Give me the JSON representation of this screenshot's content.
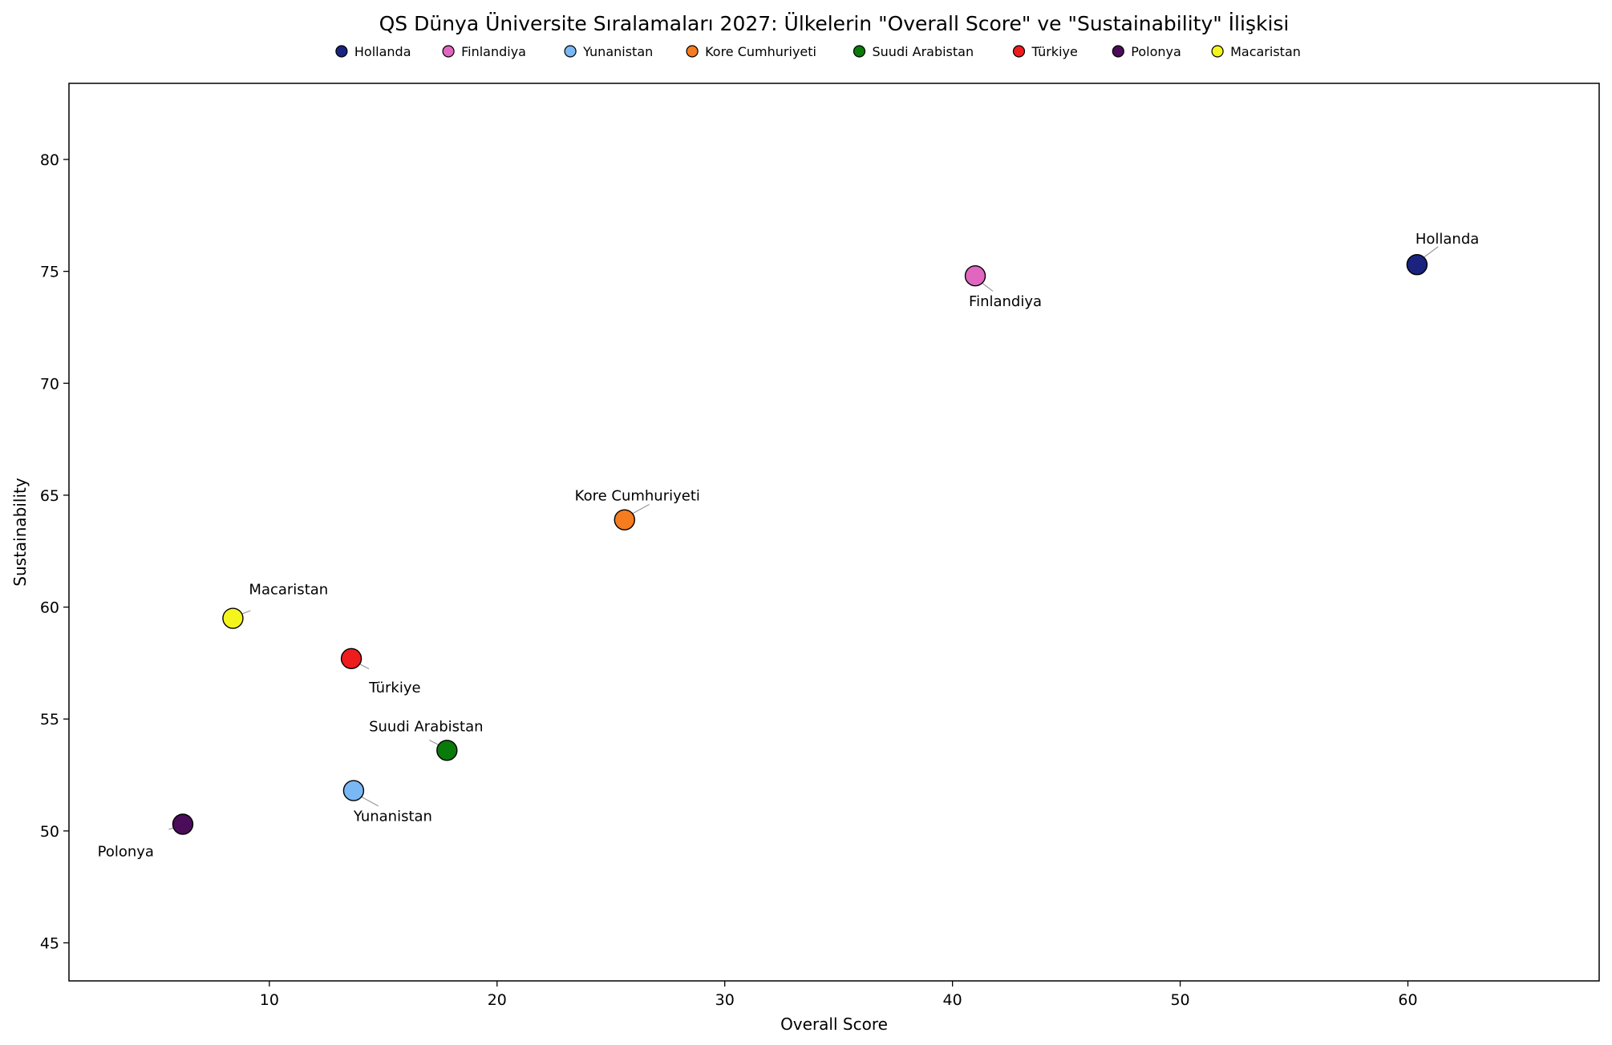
{
  "chart_data": {
    "type": "scatter",
    "title": "QS Dünya Üniversite Sıralamaları 2027: Ülkelerin \"Overall Score\" ve \"Sustainability\" İlişkisi",
    "xlabel": "Overall Score",
    "ylabel": "Sustainability",
    "xlim": [
      1.2,
      68.4
    ],
    "ylim": [
      43.3,
      83.4
    ],
    "xticks": [
      "10",
      "20",
      "30",
      "40",
      "50",
      "60"
    ],
    "yticks": [
      "45",
      "50",
      "55",
      "60",
      "65",
      "70",
      "75",
      "80"
    ],
    "grid": false,
    "legend_position": "top-center",
    "points": [
      {
        "name": "Hollanda",
        "x": 60.4,
        "y": 75.3,
        "color": "#1a237e"
      },
      {
        "name": "Finlandiya",
        "x": 41.0,
        "y": 74.8,
        "color": "#e066c0"
      },
      {
        "name": "Yunanistan",
        "x": 13.7,
        "y": 51.8,
        "color": "#7ab8f5"
      },
      {
        "name": "Kore Cumhuriyeti",
        "x": 25.6,
        "y": 63.9,
        "color": "#f57c1f"
      },
      {
        "name": "Suudi Arabistan",
        "x": 17.8,
        "y": 53.6,
        "color": "#0a7a0a"
      },
      {
        "name": "Türkiye",
        "x": 13.6,
        "y": 57.7,
        "color": "#ee1c1c"
      },
      {
        "name": "Polonya",
        "x": 6.2,
        "y": 50.3,
        "color": "#4b0c5a"
      },
      {
        "name": "Macaristan",
        "x": 8.4,
        "y": 59.5,
        "color": "#f5f51e"
      }
    ]
  }
}
